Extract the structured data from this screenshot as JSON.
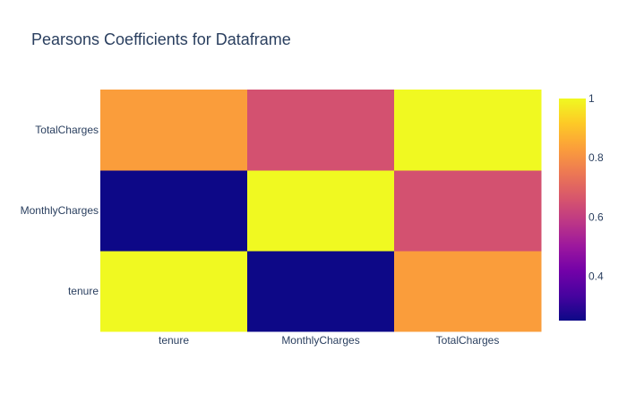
{
  "chart_data": {
    "type": "heatmap",
    "title": "Pearsons Coefficients for Dataframe",
    "xlabel": "",
    "ylabel": "",
    "x_categories": [
      "tenure",
      "MonthlyCharges",
      "TotalCharges"
    ],
    "y_categories": [
      "tenure",
      "MonthlyCharges",
      "TotalCharges"
    ],
    "z": [
      [
        1.0,
        0.25,
        0.83
      ],
      [
        0.25,
        1.0,
        0.65
      ],
      [
        0.83,
        0.65,
        1.0
      ]
    ],
    "colorscale": {
      "name": "Plasma",
      "zmin": 0.25,
      "zmax": 1.0,
      "stops": [
        "#0d0887",
        "#46039f",
        "#7201a8",
        "#9c179e",
        "#bd3786",
        "#d8576b",
        "#ed7953",
        "#fb9f3a",
        "#fdca26",
        "#f0f921"
      ]
    },
    "colorbar_ticks": [
      "1",
      "0.8",
      "0.6",
      "0.4"
    ],
    "colorbar_tick_values": [
      1.0,
      0.8,
      0.6,
      0.4
    ],
    "grid": false,
    "colorbar_placement": "right"
  }
}
